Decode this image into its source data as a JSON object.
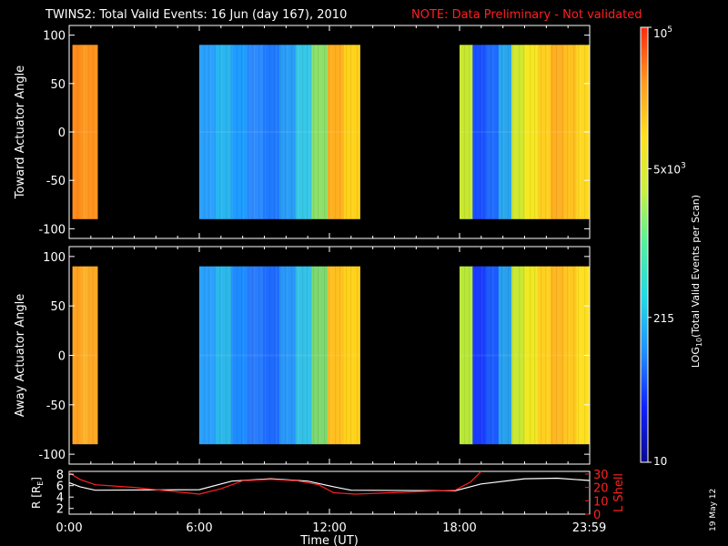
{
  "title": "TWINS2: Total Valid Events: 16 Jun (day 167), 2010",
  "note": "NOTE: Data Preliminary - Not validated",
  "colors": {
    "note": "#ff2020",
    "lshell_line": "#ff2020",
    "r_line": "#ffffff",
    "background": "#000000"
  },
  "footer_date": "19 May 12",
  "chart_data": [
    {
      "type": "heatmap",
      "name": "toward-actuator-panel",
      "ylabel": "Toward Actuator Angle",
      "xlim": [
        0,
        24
      ],
      "ylim": [
        -110,
        110
      ],
      "y_ticks": [
        "100",
        "50",
        "0",
        "-50",
        "-100"
      ],
      "y_tick_values": [
        100,
        50,
        0,
        -50,
        -100
      ],
      "data_y_range": [
        -90,
        90
      ],
      "segments": [
        {
          "start": 0.15,
          "end": 1.3,
          "level": "high",
          "bands": [
            "#ff8c1a",
            "#ff9a22",
            "#ff9420"
          ]
        },
        {
          "start": 6.0,
          "end": 13.4,
          "level": "low",
          "bands": [
            "#2aa0ff",
            "#29b6f0",
            "#1e9cff",
            "#2d8cff",
            "#1f7bff",
            "#2a9df7",
            "#36c8e8",
            "#8ee06a",
            "#ffb020",
            "#ffd21a"
          ]
        },
        {
          "start": 18.0,
          "end": 23.99,
          "level": "mixed",
          "bands": [
            "#c8e830",
            "#1a50ff",
            "#1f6cff",
            "#2aa6ee",
            "#d0e830",
            "#f6e820",
            "#ffd020",
            "#ffb020",
            "#ffc020",
            "#ffd820"
          ]
        }
      ]
    },
    {
      "type": "heatmap",
      "name": "away-actuator-panel",
      "ylabel": "Away Actuator Angle",
      "xlim": [
        0,
        24
      ],
      "ylim": [
        -110,
        110
      ],
      "y_ticks": [
        "100",
        "50",
        "0",
        "-50",
        "-100"
      ],
      "y_tick_values": [
        100,
        50,
        0,
        -50,
        -100
      ],
      "data_y_range": [
        -90,
        90
      ],
      "segments": [
        {
          "start": 0.15,
          "end": 1.3,
          "level": "high",
          "bands": [
            "#ffa220",
            "#ffb22a",
            "#ffa825"
          ]
        },
        {
          "start": 6.0,
          "end": 13.4,
          "level": "low",
          "bands": [
            "#2aa0ff",
            "#2cb8ea",
            "#1e8cff",
            "#2a7cff",
            "#1e6cff",
            "#2a98f8",
            "#34c2e8",
            "#7ed870",
            "#ffc020",
            "#ffd21a"
          ]
        },
        {
          "start": 18.0,
          "end": 23.99,
          "level": "mixed",
          "bands": [
            "#b8e838",
            "#1a3cff",
            "#1c5cff",
            "#28a0ee",
            "#c8e834",
            "#f0e820",
            "#ffd020",
            "#ffb820",
            "#ffc820",
            "#ffe020"
          ]
        }
      ]
    },
    {
      "type": "line",
      "name": "orbit-panel",
      "ylabel": "R [R",
      "ylabel_sub": "E",
      "ylabel_end": "]",
      "ylabel_right": "L Shell",
      "x_ticks": [
        "0:00",
        "6:00",
        "12:00",
        "18:00",
        "23:59"
      ],
      "x_tick_values": [
        0,
        6,
        12,
        18,
        23.98
      ],
      "xlabel": "Time (UT)",
      "y_left_ticks": [
        "8",
        "6",
        "4",
        "2"
      ],
      "y_left_values": [
        8,
        6,
        4,
        2
      ],
      "y_left_range": [
        1,
        8.5
      ],
      "y_right_ticks": [
        "30",
        "20",
        "10",
        "0"
      ],
      "y_right_values": [
        30,
        20,
        10,
        0
      ],
      "y_right_range": [
        0,
        32
      ],
      "series": [
        {
          "name": "R",
          "axis": "left",
          "x": [
            0,
            0.5,
            1.2,
            6.0,
            7.5,
            9.3,
            11.0,
            12.2,
            13.0,
            17.8,
            19.0,
            21.0,
            22.5,
            23.99
          ],
          "values": [
            6.5,
            5.8,
            5.2,
            5.3,
            6.8,
            7.2,
            6.8,
            5.8,
            5.2,
            5.1,
            6.3,
            7.2,
            7.3,
            6.9
          ]
        },
        {
          "name": "L Shell",
          "axis": "right",
          "x": [
            0,
            0.5,
            1.2,
            3.0,
            6.0,
            7.0,
            8.0,
            9.3,
            10.5,
            11.5,
            12.2,
            13.2,
            17.8,
            18.5,
            19.0
          ],
          "values": [
            31,
            26,
            22,
            20,
            15,
            19,
            25,
            26,
            25,
            22,
            16,
            15,
            18,
            24,
            32
          ]
        }
      ]
    },
    {
      "type": "colorbar",
      "name": "colorbar",
      "label": "LOG",
      "label_sub": "10",
      "label_rest": "(Total Valid Events per Scan)",
      "scale": "log",
      "range": [
        10,
        100000
      ],
      "ticks": [
        {
          "value": 100000,
          "mantissa": "10",
          "exp": "5"
        },
        {
          "value": 5000,
          "mantissa": "5x10",
          "exp": "3"
        },
        {
          "value": 215,
          "mantissa": "215",
          "exp": ""
        },
        {
          "value": 10,
          "mantissa": "10",
          "exp": ""
        }
      ],
      "colors": [
        "#0a0a90",
        "#1020ff",
        "#1f8cff",
        "#20d8e8",
        "#50f0a0",
        "#c8f040",
        "#ffe020",
        "#ff9a20",
        "#ff2a10"
      ]
    }
  ]
}
